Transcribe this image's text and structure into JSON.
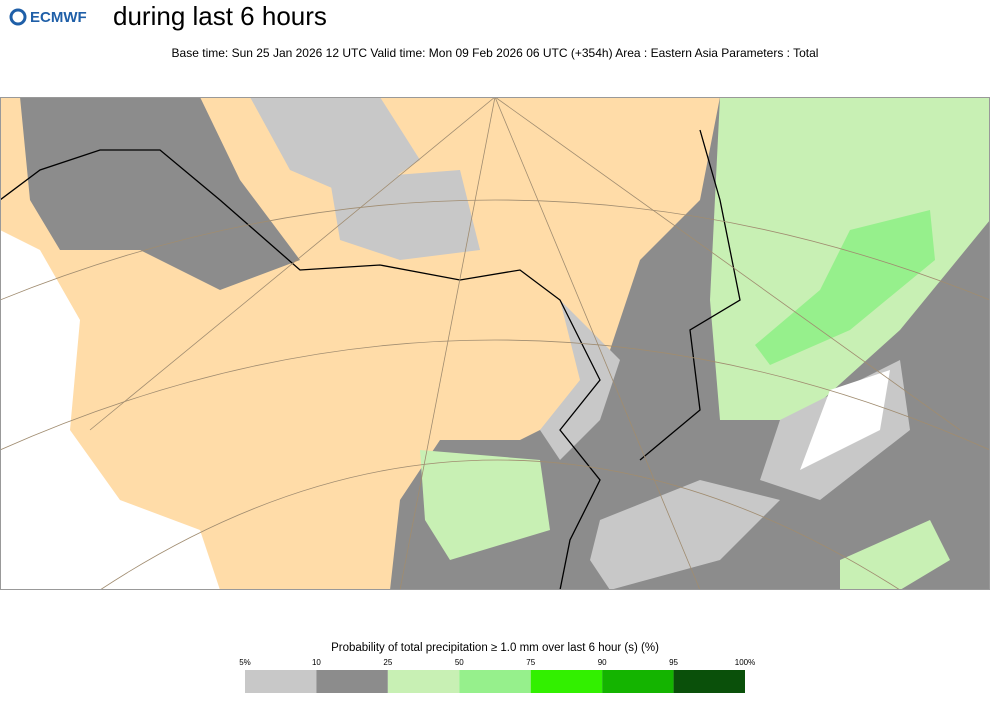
{
  "header": {
    "logo": "ECMWF",
    "title": "during last 6 hours",
    "subtitle": "Base time: Sun 25 Jan 2026 12 UTC Valid time: Mon 09 Feb 2026 06 UTC (+354h) Area : Eastern Asia Parameters : Total"
  },
  "legend": {
    "title": "Probability of total precipitation ≥ 1.0 mm over last 6 hour (s) (%)",
    "ticks": [
      "5%",
      "10",
      "25",
      "50",
      "75",
      "90",
      "95",
      "100%"
    ],
    "colors": [
      "#c8c8c8",
      "#8c8c8c",
      "#c8f0b4",
      "#96f08c",
      "#32f000",
      "#14b400",
      "#0a500a"
    ]
  }
}
